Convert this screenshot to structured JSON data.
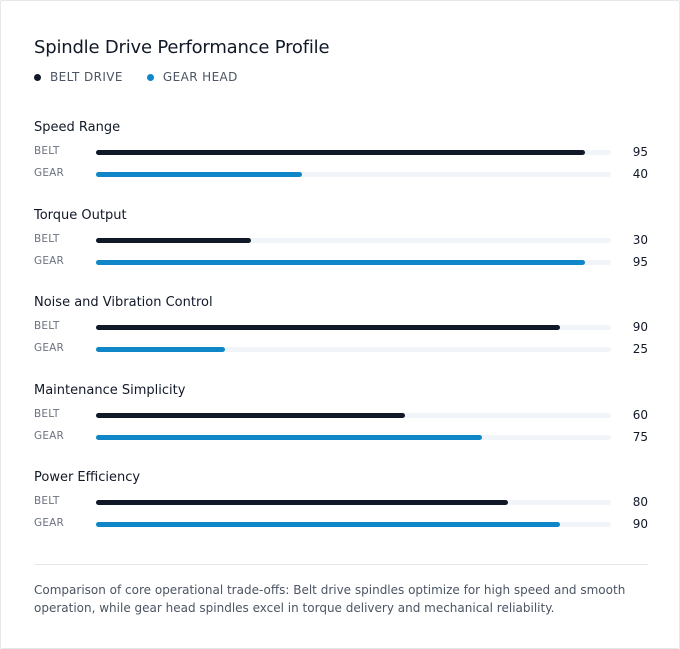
{
  "chart_data": {
    "type": "bar",
    "orientation": "horizontal",
    "title": "Spindle Drive Performance Profile",
    "xlim": [
      0,
      100
    ],
    "legend_position": "top-left",
    "grid": false,
    "categories": [
      "Speed Range",
      "Torque Output",
      "Noise and Vibration Control",
      "Maintenance Simplicity",
      "Power Efficiency"
    ],
    "series": [
      {
        "name": "BELT DRIVE",
        "row_label": "BELT",
        "color": "#111827",
        "values": [
          95,
          30,
          90,
          60,
          80
        ]
      },
      {
        "name": "GEAR HEAD",
        "row_label": "GEAR",
        "color": "#0e86c8",
        "values": [
          40,
          95,
          25,
          75,
          90
        ]
      }
    ]
  },
  "caption": "Comparison of core operational trade-offs: Belt drive spindles optimize for high speed and smooth operation, while gear head spindles excel in torque delivery and mechanical reliability."
}
